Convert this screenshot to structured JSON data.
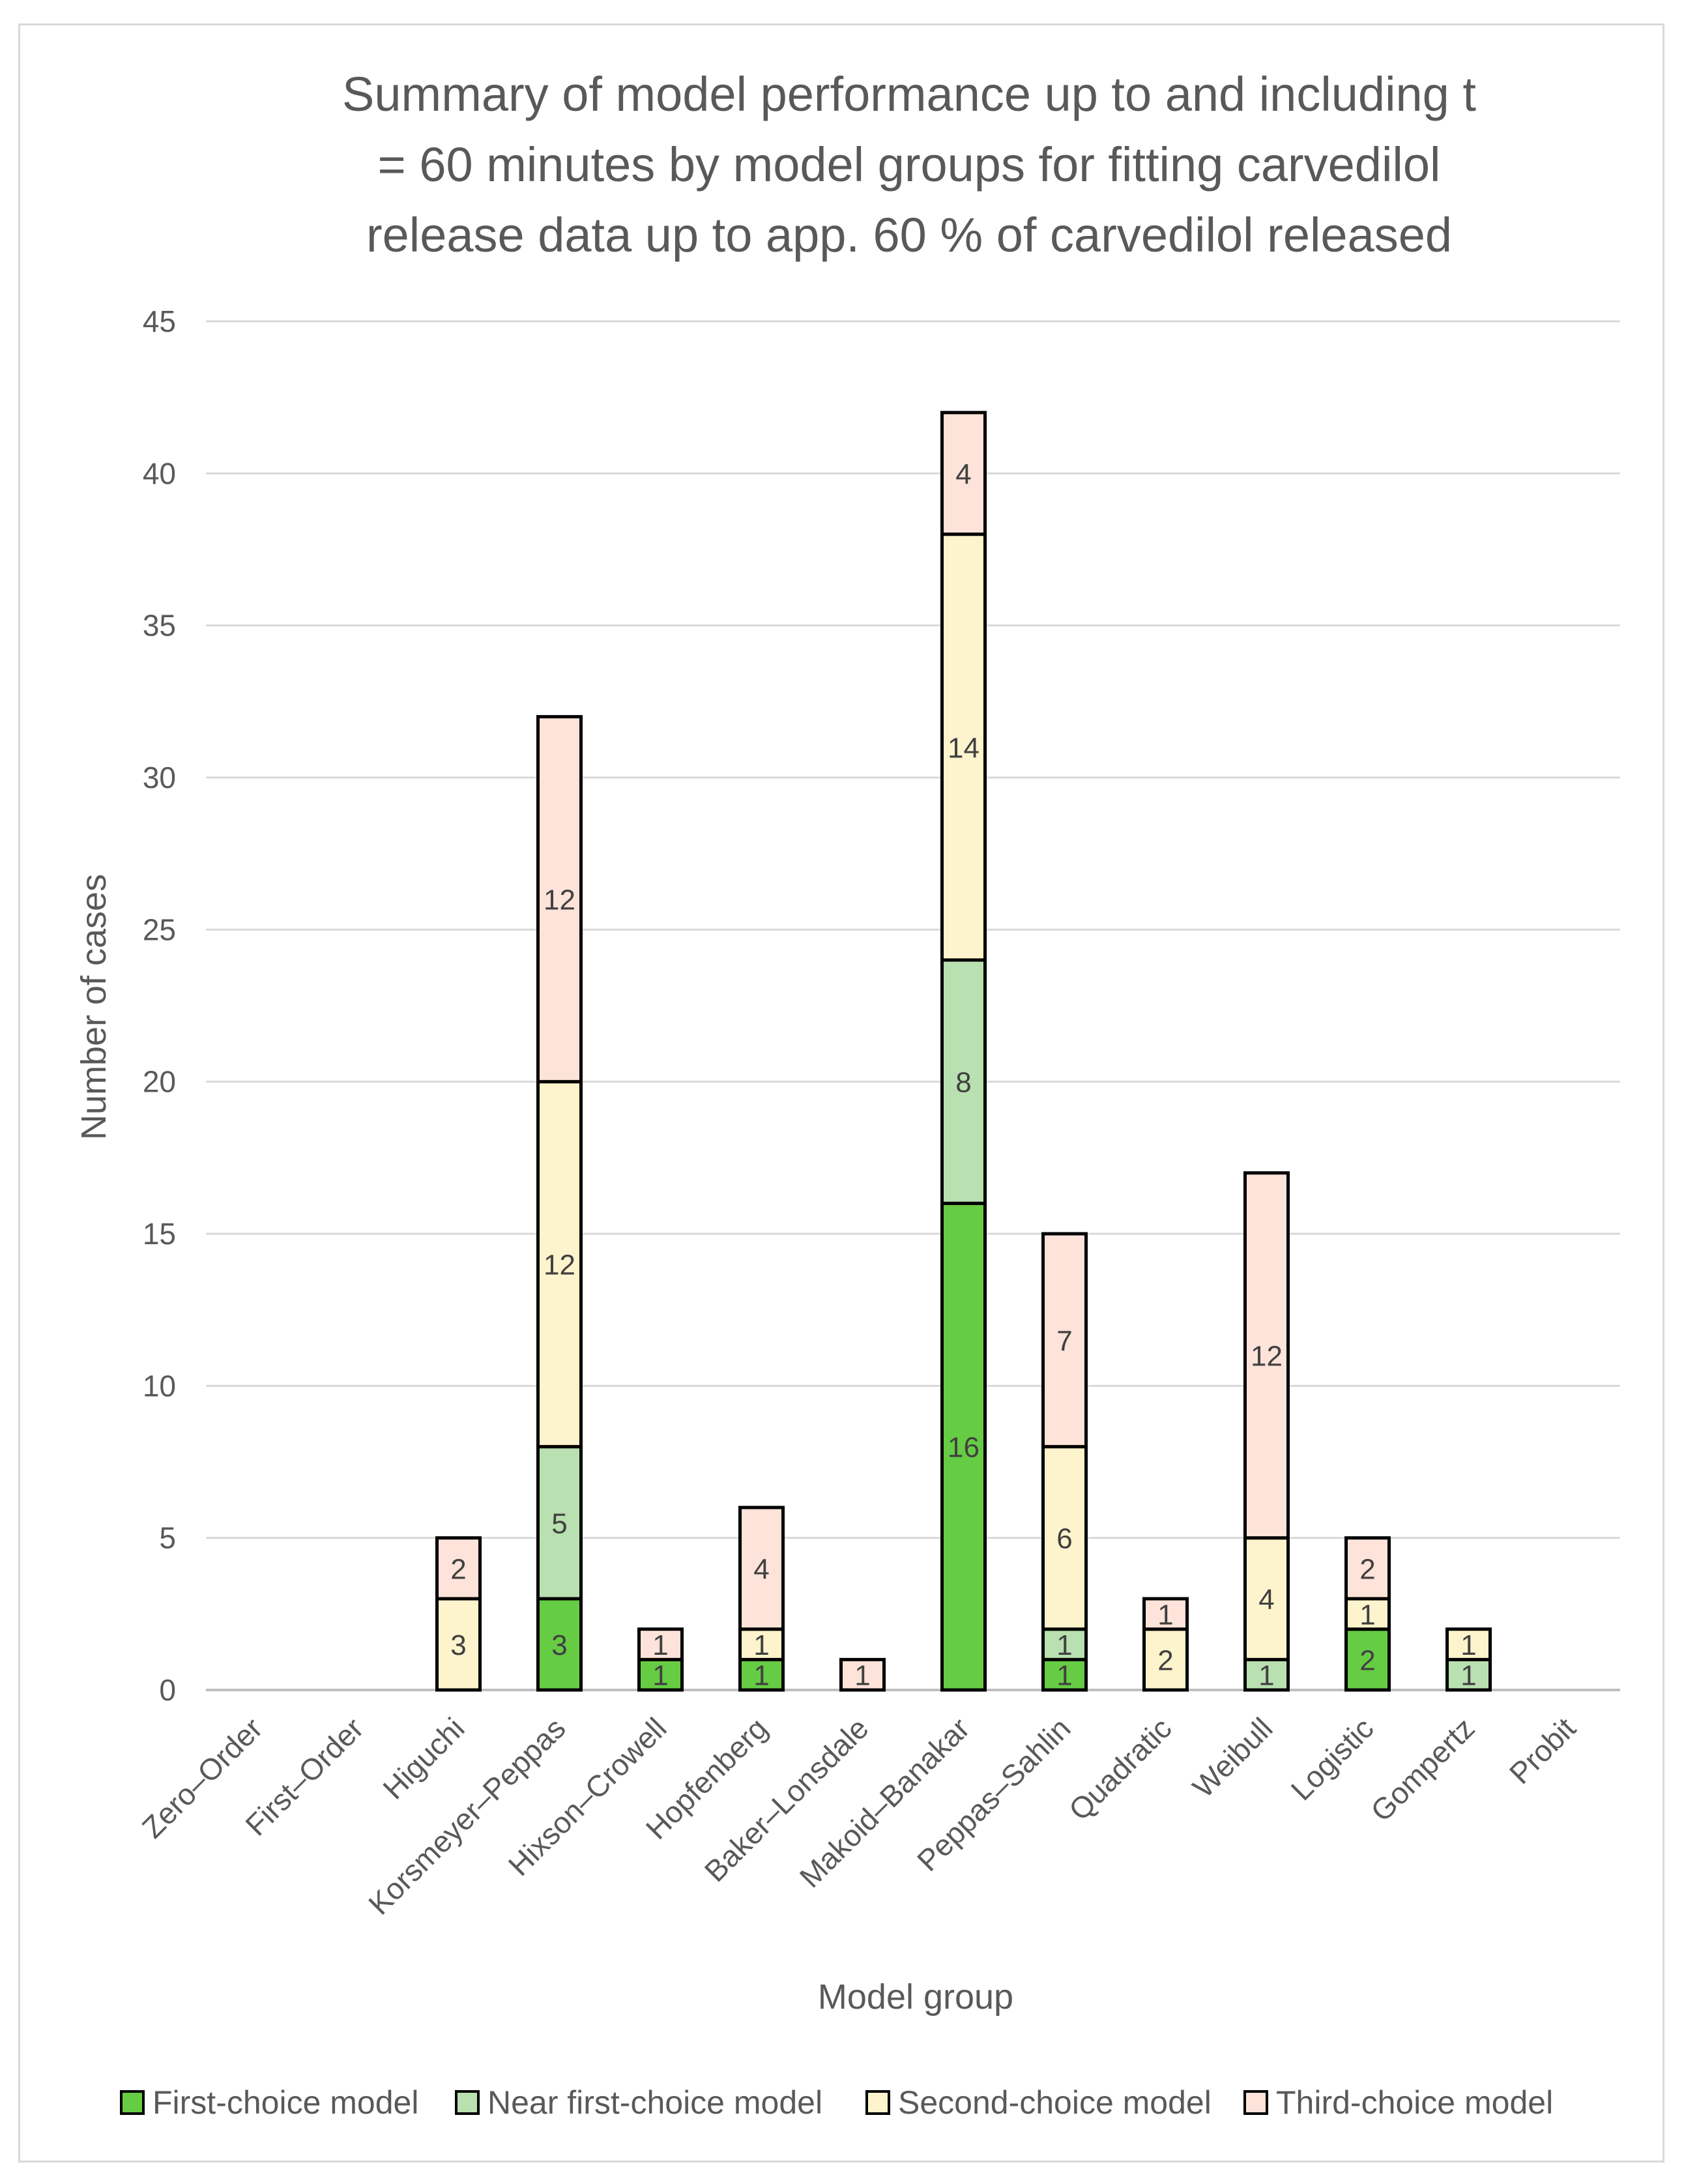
{
  "chart_data": {
    "type": "bar",
    "stacked": true,
    "title": "Summary of model performance  up to and including t = 60 minutes by model groups for fitting carvedilol release data up to app. 60 % of carvedilol released",
    "title_lines": [
      "Summary of model performance  up to and including t",
      "= 60 minutes by model groups for fitting carvedilol",
      "release data up to app. 60 % of carvedilol released"
    ],
    "xlabel": "Model group",
    "ylabel": "Number of cases",
    "ylim": [
      0,
      45
    ],
    "yticks": [
      0,
      5,
      10,
      15,
      20,
      25,
      30,
      35,
      40,
      45
    ],
    "grid": true,
    "legend_position": "bottom",
    "categories": [
      "Zero–Order",
      "First–Order",
      "Higuchi",
      "Korsmeyer–Peppas",
      "Hixson–Crowell",
      "Hopfenberg",
      "Baker–Lonsdale",
      "Makoid–Banakar",
      "Peppas–Sahlin",
      "Quadratic",
      "Weibull",
      "Logistic",
      "Gompertz",
      "Probit"
    ],
    "series": [
      {
        "name": "First-choice model",
        "color": "#66cc44",
        "values": [
          0,
          0,
          0,
          3,
          1,
          1,
          0,
          16,
          1,
          0,
          0,
          2,
          0,
          0
        ]
      },
      {
        "name": "Near first-choice model",
        "color": "#b8e0b0",
        "values": [
          0,
          0,
          0,
          5,
          0,
          0,
          0,
          8,
          1,
          0,
          1,
          0,
          1,
          0
        ]
      },
      {
        "name": "Second-choice model",
        "color": "#fdf3cc",
        "values": [
          0,
          0,
          3,
          12,
          0,
          1,
          0,
          14,
          6,
          2,
          4,
          1,
          1,
          0
        ]
      },
      {
        "name": "Third-choice model",
        "color": "#fde3d9",
        "values": [
          0,
          0,
          2,
          12,
          1,
          4,
          1,
          4,
          7,
          1,
          12,
          2,
          0,
          0
        ]
      }
    ]
  }
}
